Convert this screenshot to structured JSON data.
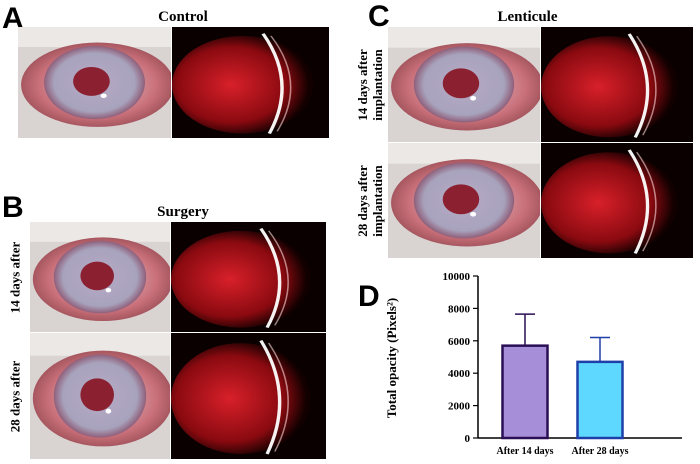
{
  "panels": {
    "a": {
      "letter": "A",
      "title": "Control"
    },
    "b": {
      "letter": "B",
      "title": "Surgery",
      "rows": [
        "14 days after",
        "28 days after"
      ]
    },
    "c": {
      "letter": "C",
      "title": "Lenticule",
      "rows": [
        [
          "14 days after",
          "implantation"
        ],
        [
          "28 days after",
          "implantation"
        ]
      ]
    },
    "d": {
      "letter": "D"
    }
  },
  "colors": {
    "sclera": "#c9707a",
    "iris": "#a8a3bd",
    "pupil": "#8a2030",
    "slit_background": "#5a0808",
    "slit_glow": "#d8202a",
    "bar1_fill": "#a68ed8",
    "bar1_edge": "#2a0f55",
    "bar2_fill": "#5fd8ff",
    "bar2_edge": "#1f3fa8"
  },
  "chart_data": {
    "type": "bar",
    "categories": [
      "After 14 days",
      "After 28 days"
    ],
    "values": [
      5700,
      4700
    ],
    "errors": [
      1950,
      1500
    ],
    "ylabel": "Total opacity (Pixels²)",
    "ylim": [
      0,
      10000
    ],
    "yticks": [
      0,
      2000,
      4000,
      6000,
      8000,
      10000
    ],
    "grid": false
  }
}
